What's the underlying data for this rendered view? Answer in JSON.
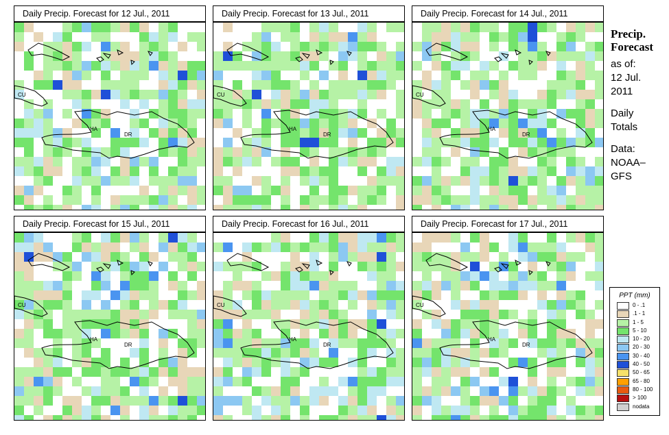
{
  "panels": [
    {
      "title": "Daily Precip. Forecast for  12 Jul., 2011",
      "seed": 11
    },
    {
      "title": "Daily Precip. Forecast for  13 Jul., 2011",
      "seed": 23
    },
    {
      "title": "Daily Precip. Forecast for  14 Jul., 2011",
      "seed": 37
    },
    {
      "title": "Daily Precip. Forecast for  15 Jul., 2011",
      "seed": 41
    },
    {
      "title": "Daily Precip. Forecast for  16 Jul., 2011",
      "seed": 53
    },
    {
      "title": "Daily Precip. Forecast for  17 Jul., 2011",
      "seed": 67
    }
  ],
  "map_labels": {
    "cuba": "CU",
    "haiti": "HA",
    "dominican_republic": "DR"
  },
  "sidebar": {
    "title_line1": "Precip.",
    "title_line2": "Forecast",
    "asof_label": "as of:",
    "date_line1": "12 Jul.",
    "date_line2": "2011",
    "totals_line1": "Daily",
    "totals_line2": "Totals",
    "data_line1": "Data:",
    "data_line2": "NOAA–",
    "data_line3": "GFS"
  },
  "legend": {
    "title": "PPT (mm)",
    "items": [
      {
        "label": "0 - .1",
        "color": "#ffffff"
      },
      {
        "label": ".1 - 1",
        "color": "#e8d6b8"
      },
      {
        "label": "1 - 5",
        "color": "#b6f2a6"
      },
      {
        "label": "5 - 10",
        "color": "#74e46c"
      },
      {
        "label": "10 - 20",
        "color": "#bfe8f2"
      },
      {
        "label": "20 - 30",
        "color": "#8cc8f2"
      },
      {
        "label": "30 - 40",
        "color": "#4a94f0"
      },
      {
        "label": "40 - 50",
        "color": "#1f50d8"
      },
      {
        "label": "50 - 65",
        "color": "#f6e16a"
      },
      {
        "label": "65 - 80",
        "color": "#ffa000"
      },
      {
        "label": "80 - 100",
        "color": "#e85a10"
      },
      {
        "label": "> 100",
        "color": "#b81010"
      },
      {
        "label": "nodata",
        "color": "#d0d0d0"
      }
    ]
  }
}
